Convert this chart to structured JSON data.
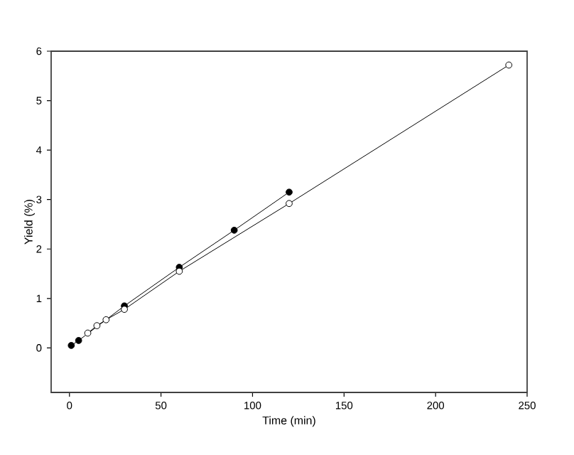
{
  "chart_data": {
    "type": "line",
    "xlabel": "Time (min)",
    "ylabel": "Yield (%)",
    "marker": "circle",
    "line_style": "solid",
    "grid": false,
    "xlim": [
      -10,
      250
    ],
    "ylim": [
      -0.9,
      6
    ],
    "xticks": [
      0,
      50,
      100,
      150,
      200,
      250
    ],
    "yticks": [
      0,
      1,
      2,
      3,
      4,
      5,
      6
    ],
    "series": [
      {
        "color": "#000000",
        "x": [
          1,
          5,
          30,
          60,
          90,
          120
        ],
        "values": [
          0.05,
          0.15,
          0.85,
          1.63,
          2.38,
          3.15
        ]
      },
      {
        "color": "#000000",
        "x": [
          10,
          15,
          20,
          30,
          60,
          120,
          240
        ],
        "values": [
          0.3,
          0.45,
          0.57,
          0.78,
          1.55,
          2.92,
          5.72
        ]
      }
    ]
  }
}
